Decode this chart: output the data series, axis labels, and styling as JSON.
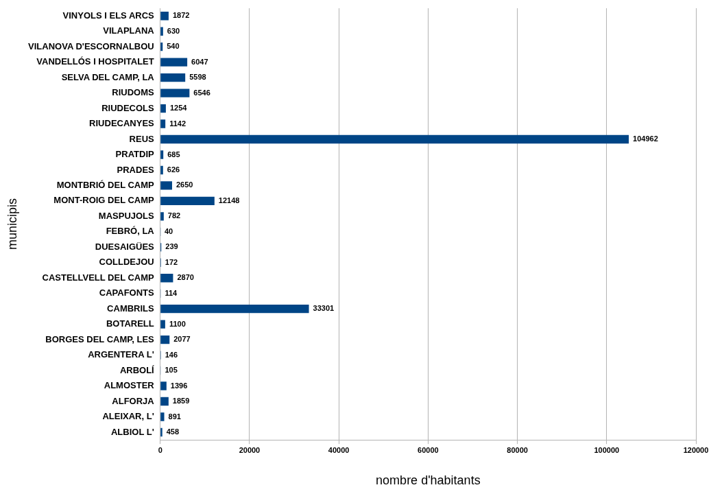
{
  "chart_data": {
    "type": "bar",
    "orientation": "horizontal",
    "xlabel": "nombre d'habitants",
    "ylabel": "municipis",
    "categories": [
      "VINYOLS I ELS ARCS",
      "VILAPLANA",
      "VILANOVA D'ESCORNALBOU",
      "VANDELLÓS I HOSPITALET",
      "SELVA DEL CAMP, LA",
      "RIUDOMS",
      "RIUDECOLS",
      "RIUDECANYES",
      "REUS",
      "PRATDIP",
      "PRADES",
      "MONTBRIÓ DEL CAMP",
      "MONT-ROIG DEL CAMP",
      "MASPUJOLS",
      "FEBRÓ, LA",
      "DUESAIGÜES",
      "COLLDEJOU",
      "CASTELLVELL DEL CAMP",
      "CAPAFONTS",
      "CAMBRILS",
      "BOTARELL",
      "BORGES DEL CAMP, LES",
      "ARGENTERA L'",
      "ARBOLÍ",
      "ALMOSTER",
      "ALFORJA",
      "ALEIXAR, L'",
      "ALBIOL L'"
    ],
    "values": [
      1872,
      630,
      540,
      6047,
      5598,
      6546,
      1254,
      1142,
      104962,
      685,
      626,
      2650,
      12148,
      782,
      40,
      239,
      172,
      2870,
      114,
      33301,
      1100,
      2077,
      146,
      105,
      1396,
      1859,
      891,
      458
    ],
    "color": "#004586",
    "data_labels": true,
    "xlim": [
      0,
      120000
    ],
    "xticks": [
      0,
      20000,
      40000,
      60000,
      80000,
      100000,
      120000
    ],
    "grid": "x",
    "legend": false
  }
}
